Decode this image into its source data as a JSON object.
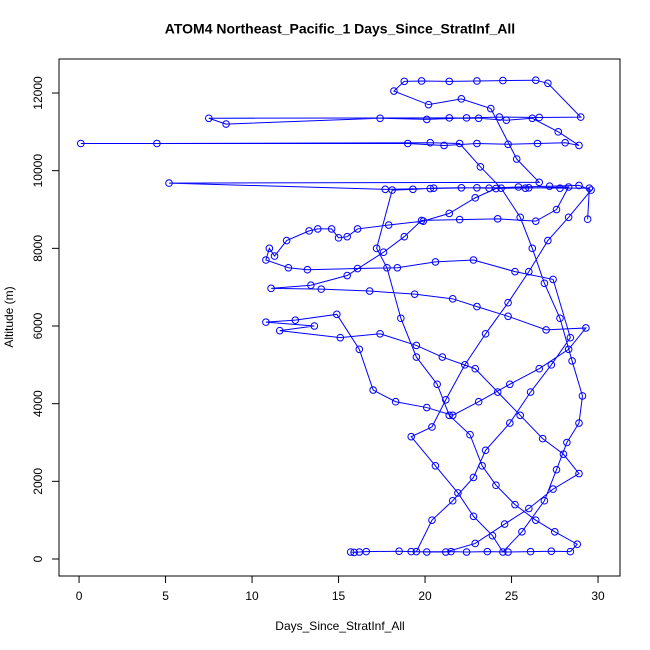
{
  "chart_data": {
    "type": "line",
    "markers": true,
    "title": "ATOM4 Northeast_Pacific_1 Days_Since_StratInf_All",
    "x_label": "Days_Since_StratInf_All",
    "y_label": "Altitude (m)",
    "color": "#0000ff",
    "xlim": [
      -1.16,
      31.27
    ],
    "ylim": [
      -438,
      12876
    ],
    "xticks": [
      0,
      5,
      10,
      15,
      20,
      25,
      30
    ],
    "yticks": [
      0,
      2000,
      4000,
      6000,
      8000,
      10000,
      12000
    ],
    "x": [
      15.7,
      15.9,
      16.2,
      16.6,
      18.5,
      19.2,
      20.1,
      21.5,
      22.4,
      23.6,
      24.8,
      26.1,
      27.3,
      28.4,
      28.8,
      27.5,
      26.4,
      25.2,
      24.1,
      23.3,
      22.6,
      21.4,
      20.7,
      19.5,
      18.6,
      17.8,
      17.2,
      18.1,
      19.3,
      20.5,
      22.1,
      23.7,
      25.4,
      27.2,
      28.9,
      29.6,
      28.3,
      27.1,
      26.0,
      24.8,
      23.5,
      22.3,
      21.2,
      20.4,
      19.2,
      20.6,
      21.9,
      22.8,
      23.9,
      24.5,
      25.6,
      26.9,
      27.6,
      28.2,
      28.9,
      29.1,
      28.5,
      27.8,
      26.9,
      26.2,
      25.5,
      24.4,
      23.2,
      22.0,
      20.3,
      4.5,
      0.1,
      19.0,
      21.1,
      23.0,
      24.8,
      26.5,
      28.1,
      28.9,
      27.7,
      26.2,
      24.7,
      23.1,
      21.4,
      7.5,
      8.5,
      17.4,
      20.1,
      22.4,
      24.3,
      26.6,
      29.0,
      27.1,
      26.4,
      24.5,
      23.0,
      21.4,
      19.8,
      18.8,
      18.2,
      20.2,
      22.1,
      23.8,
      25.3,
      26.6,
      5.2,
      17.7,
      20.3,
      23.0,
      25.8,
      28.3,
      27.6,
      26.4,
      24.2,
      22.0,
      19.8,
      18.8,
      17.6,
      15.5,
      13.4,
      11.1,
      14.0,
      16.8,
      19.4,
      21.6,
      23.0,
      24.8,
      27.0,
      29.3,
      28.3,
      26.6,
      24.9,
      23.1,
      21.6,
      20.1,
      18.3,
      17.0,
      16.2,
      14.9,
      12.5,
      10.8,
      13.6,
      11.6,
      15.1,
      17.4,
      19.5,
      21.0,
      22.9,
      24.2,
      25.5,
      26.8,
      28.0,
      28.9,
      27.4,
      26.0,
      24.6,
      22.9,
      21.2,
      19.5,
      20.4,
      21.6,
      22.8,
      23.5,
      24.9,
      26.1,
      27.3,
      28.4,
      27.4,
      25.2,
      22.8,
      20.6,
      18.4,
      16.1,
      13.2,
      12.1,
      10.8,
      11.0,
      11.3,
      12.0,
      13.3,
      13.8,
      14.6,
      15.0,
      15.5,
      16.1,
      17.9,
      19.9,
      21.4,
      22.9,
      24.1,
      26.0,
      27.8,
      29.5,
      29.4
    ],
    "values": [
      180,
      170,
      180,
      190,
      200,
      190,
      180,
      190,
      180,
      190,
      180,
      190,
      200,
      190,
      380,
      700,
      1000,
      1400,
      1900,
      2400,
      3200,
      3700,
      4500,
      5200,
      6200,
      7500,
      8000,
      9500,
      9520,
      9550,
      9560,
      9550,
      9580,
      9600,
      9620,
      9500,
      8800,
      8200,
      7400,
      6600,
      5800,
      5000,
      4100,
      3400,
      3150,
      2400,
      1700,
      1100,
      600,
      180,
      700,
      1500,
      2300,
      3000,
      3500,
      4200,
      5100,
      6200,
      7100,
      8000,
      8800,
      9550,
      10100,
      10700,
      10720,
      10700,
      10700,
      10700,
      10650,
      10700,
      10680,
      10700,
      10720,
      10650,
      11000,
      11350,
      11300,
      11350,
      11360,
      11350,
      11200,
      11350,
      11320,
      11360,
      11380,
      11370,
      11380,
      12250,
      12330,
      12320,
      12310,
      12300,
      12310,
      12300,
      12050,
      11700,
      11850,
      11600,
      10300,
      9700,
      9680,
      9520,
      9540,
      9560,
      9550,
      9580,
      9000,
      8700,
      8760,
      8740,
      8720,
      8300,
      7900,
      7300,
      7050,
      6970,
      6950,
      6900,
      6820,
      6700,
      6500,
      6250,
      5900,
      5950,
      5400,
      4900,
      4500,
      4050,
      3700,
      3900,
      4050,
      4350,
      5400,
      6300,
      6150,
      6100,
      6000,
      5880,
      5700,
      5800,
      5500,
      5200,
      4900,
      4300,
      3700,
      3100,
      2700,
      2200,
      1800,
      1300,
      900,
      400,
      180,
      190,
      1000,
      1500,
      2100,
      2800,
      3500,
      4300,
      5000,
      5700,
      7200,
      7400,
      7700,
      7650,
      7500,
      7480,
      7450,
      7500,
      7700,
      8000,
      7800,
      8200,
      8450,
      8500,
      8500,
      8270,
      8300,
      8500,
      8600,
      8700,
      8900,
      9300,
      9540,
      9560,
      9550,
      9550,
      8750
    ]
  }
}
